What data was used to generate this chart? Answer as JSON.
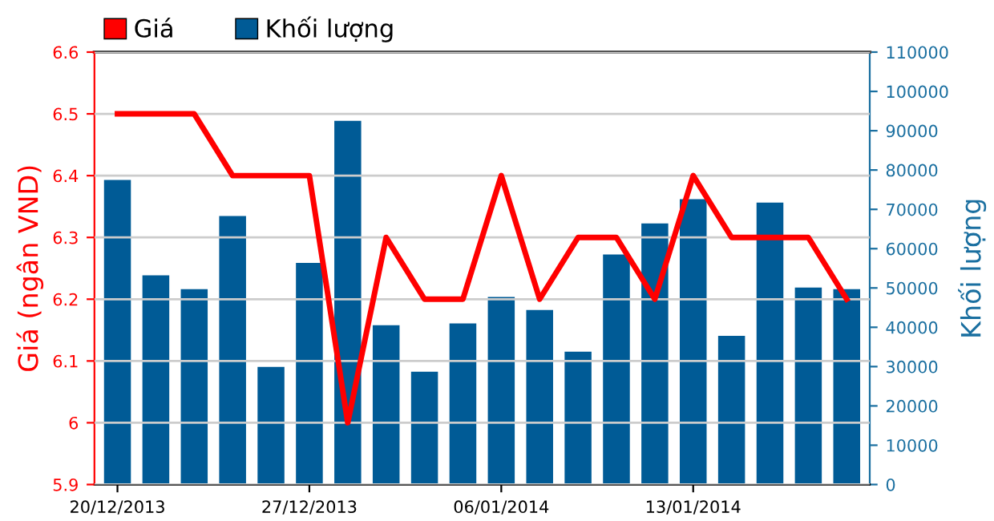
{
  "chart_data": {
    "type": "bar",
    "ylabel": "Giá (ngân VND)",
    "y2label": "Khối lượng",
    "categories": [
      "20/12/2013",
      null,
      null,
      null,
      null,
      "27/12/2013",
      null,
      null,
      null,
      null,
      "06/01/2014",
      null,
      null,
      null,
      null,
      "13/01/2014",
      null,
      null,
      null,
      null
    ],
    "series": [
      {
        "name": "Giá",
        "type": "line",
        "color": "#ff0000",
        "values": [
          6.5,
          6.5,
          6.5,
          6.4,
          6.4,
          6.4,
          6.0,
          6.3,
          6.2,
          6.2,
          6.4,
          6.2,
          6.3,
          6.3,
          6.2,
          6.4,
          6.3,
          6.3,
          6.3,
          6.2
        ]
      },
      {
        "name": "Khối lượng",
        "axis": "y2",
        "color": "#005b96",
        "values": [
          77500,
          53200,
          49700,
          68300,
          29900,
          56400,
          92500,
          40500,
          28700,
          41000,
          47700,
          44400,
          33800,
          58500,
          66400,
          72600,
          37800,
          71700,
          50100,
          49700
        ]
      }
    ],
    "ylim": [
      5.9,
      6.6
    ],
    "yticks": [
      5.9,
      6,
      6.1,
      6.2,
      6.3,
      6.4,
      6.5,
      6.6
    ],
    "y2lim": [
      0,
      110000
    ],
    "y2ticks": [
      0,
      10000,
      20000,
      30000,
      40000,
      50000,
      60000,
      70000,
      80000,
      90000,
      100000,
      110000
    ],
    "grid": "y",
    "legend": "top left",
    "marker": "none",
    "line_style": "solid"
  }
}
